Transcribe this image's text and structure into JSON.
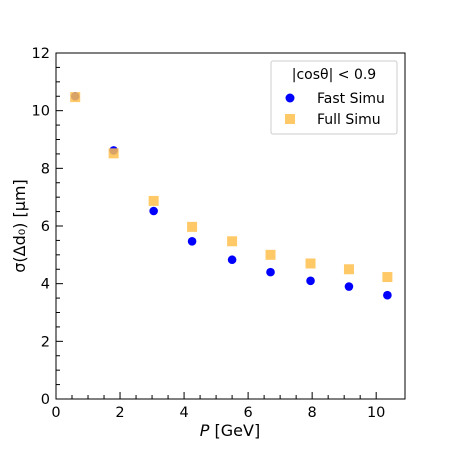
{
  "chart_data": {
    "type": "scatter",
    "xlabel_var": "P",
    "xlabel_unit": "[GeV]",
    "ylabel_text": "σ(Δd₀) [μm]",
    "xlim": [
      0,
      10.9
    ],
    "ylim": [
      0,
      12
    ],
    "xticks": [
      0,
      2,
      4,
      6,
      8,
      10
    ],
    "yticks": [
      0,
      2,
      4,
      6,
      8,
      10,
      12
    ],
    "grid": false,
    "legend": {
      "placement": "top-right",
      "title": "|cosθ| < 0.9"
    },
    "series": [
      {
        "name": "Fast Simu",
        "marker": "circle",
        "color": "#0000ff",
        "x": [
          0.6,
          1.8,
          3.05,
          4.25,
          5.5,
          6.7,
          7.95,
          9.15,
          10.35
        ],
        "y": [
          10.5,
          8.62,
          6.52,
          5.47,
          4.83,
          4.4,
          4.1,
          3.9,
          3.6
        ]
      },
      {
        "name": "Full Simu",
        "marker": "square",
        "color": "#ffc04d",
        "x": [
          0.6,
          1.8,
          3.05,
          4.25,
          5.5,
          6.7,
          7.95,
          9.15,
          10.35
        ],
        "y": [
          10.47,
          8.52,
          6.87,
          5.97,
          5.47,
          5.0,
          4.7,
          4.5,
          4.23
        ]
      }
    ]
  }
}
